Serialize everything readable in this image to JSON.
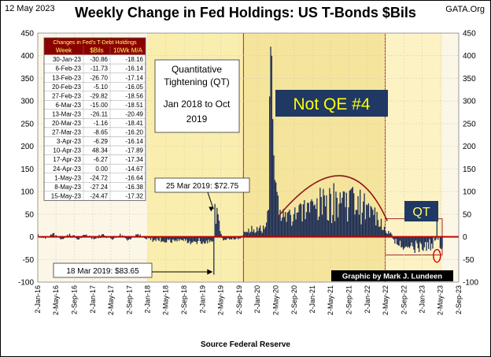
{
  "header": {
    "date": "12 May 2023",
    "title": "Weekly Change in Fed Holdings:  US T-Bonds $Bils",
    "site": "GATA.Org"
  },
  "footer": {
    "source": "Source  Federal Reserve"
  },
  "colors": {
    "plot_bg": "#fbf6e6",
    "qt1_region": "#faeeae",
    "qe_region": "#f5e49c",
    "qt2_region": "#fdf2c4",
    "bars": "#1f2f55",
    "zero_line": "#c00000",
    "region_border": "#a52a2a",
    "arc": "#8b1a1a",
    "qe_box": "#1f3864",
    "qe_text": "#ffff00",
    "qt_box": "#1f3864",
    "qt_text": "#ffff66",
    "table_header": "#8b0000",
    "table_header_text": "#ffff66"
  },
  "annotations": {
    "qt_box_lines": [
      "Quantitative",
      "Tightening (QT)",
      "Jan 2018 to Oct",
      "2019"
    ],
    "not_qe": "Not QE #4",
    "qt2": "QT",
    "mar25": "25 Mar 2019:  $72.75",
    "mar18": "18 Mar 2019:  $83.65",
    "credit": "Graphic by Mark J. Lundeen"
  },
  "table": {
    "title": "Changes in Fed's T-Debt Holdings",
    "columns": [
      "Week",
      "$Bils",
      "10Wk M/A"
    ],
    "rows": [
      [
        "30-Jan-23",
        "-30.86",
        "-18.16"
      ],
      [
        "6-Feb-23",
        "-11.73",
        "-16.14"
      ],
      [
        "13-Feb-23",
        "-26.70",
        "-17.14"
      ],
      [
        "20-Feb-23",
        "-5.10",
        "-16.05"
      ],
      [
        "27-Feb-23",
        "-29.82",
        "-18.56"
      ],
      [
        "6-Mar-23",
        "-15.00",
        "-18.51"
      ],
      [
        "13-Mar-23",
        "-26.11",
        "-20.49"
      ],
      [
        "20-Mar-23",
        "-1.16",
        "-18.41"
      ],
      [
        "27-Mar-23",
        "-8.65",
        "-16.20"
      ],
      [
        "3-Apr-23",
        "-6.29",
        "-16.14"
      ],
      [
        "10-Apr-23",
        "48.34",
        "-17.89"
      ],
      [
        "17-Apr-23",
        "-6.27",
        "-17.34"
      ],
      [
        "24-Apr-23",
        "0.00",
        "-14.67"
      ],
      [
        "1-May-23",
        "-24.72",
        "-16.64"
      ],
      [
        "8-May-23",
        "-27.24",
        "-16.38"
      ],
      [
        "15-May-23",
        "-24.47",
        "-17.32"
      ]
    ]
  },
  "chart_data": {
    "type": "bar",
    "title": "Weekly Change in Fed Holdings:  US T-Bonds $Bils",
    "xlabel": "",
    "ylabel": "",
    "ylim": [
      -100,
      450
    ],
    "yticks": [
      -100,
      -50,
      0,
      50,
      100,
      150,
      200,
      250,
      300,
      350,
      400,
      450
    ],
    "xlim": [
      "2016-01-02",
      "2023-09-02"
    ],
    "xtick_labels": [
      "2-Jan-16",
      "2-May-16",
      "2-Sep-16",
      "2-Jan-17",
      "2-May-17",
      "2-Sep-17",
      "2-Jan-18",
      "2-May-18",
      "2-Sep-18",
      "2-Jan-19",
      "2-May-19",
      "2-Sep-19",
      "2-Jan-20",
      "2-May-20",
      "2-Sep-20",
      "2-Jan-21",
      "2-May-21",
      "2-Sep-21",
      "2-Jan-22",
      "2-May-22",
      "2-Sep-22",
      "2-Jan-23",
      "2-May-23",
      "2-Sep-23"
    ],
    "regions": [
      {
        "from": "2018-01-01",
        "to": "2019-10-01"
      },
      {
        "from": "2019-10-01",
        "to": "2022-05-01"
      },
      {
        "from": "2022-05-01",
        "to": "2023-05-15"
      }
    ],
    "series": [
      {
        "weekly": [
          [
            "2016-01-04",
            6
          ],
          [
            "2016-02-22",
            -4
          ],
          [
            "2016-04-11",
            8
          ],
          [
            "2016-06-06",
            -5
          ],
          [
            "2016-08-01",
            7
          ],
          [
            "2016-09-26",
            -6
          ],
          [
            "2016-11-21",
            5
          ],
          [
            "2017-01-16",
            -4
          ],
          [
            "2017-03-13",
            6
          ],
          [
            "2017-05-08",
            -5
          ],
          [
            "2017-07-03",
            7
          ],
          [
            "2017-08-28",
            -6
          ],
          [
            "2017-10-23",
            5
          ],
          [
            "2017-12-18",
            -4
          ],
          [
            "2018-02-12",
            -8
          ],
          [
            "2018-04-09",
            -10
          ],
          [
            "2018-06-04",
            -12
          ],
          [
            "2018-07-30",
            -9
          ],
          [
            "2018-09-24",
            -14
          ],
          [
            "2018-11-19",
            -11
          ],
          [
            "2019-01-14",
            -15
          ],
          [
            "2019-03-11",
            -10
          ],
          [
            "2019-03-18",
            -83.65
          ],
          [
            "2019-03-25",
            72.75
          ],
          [
            "2019-05-20",
            -8
          ],
          [
            "2019-07-15",
            -6
          ],
          [
            "2019-09-09",
            -4
          ],
          [
            "2019-11-04",
            18
          ],
          [
            "2019-12-30",
            22
          ],
          [
            "2020-02-10",
            25
          ],
          [
            "2020-03-16",
            60
          ],
          [
            "2020-03-23",
            310
          ],
          [
            "2020-03-30",
            420
          ],
          [
            "2020-04-06",
            400
          ],
          [
            "2020-04-13",
            260
          ],
          [
            "2020-04-20",
            180
          ],
          [
            "2020-05-04",
            120
          ],
          [
            "2020-06-01",
            60
          ],
          [
            "2020-07-06",
            55
          ],
          [
            "2020-08-03",
            60
          ],
          [
            "2020-09-07",
            65
          ],
          [
            "2020-10-05",
            70
          ],
          [
            "2020-11-02",
            72
          ],
          [
            "2020-12-07",
            75
          ],
          [
            "2021-01-04",
            78
          ],
          [
            "2021-02-01",
            85
          ],
          [
            "2021-03-01",
            88
          ],
          [
            "2021-04-05",
            92
          ],
          [
            "2021-05-03",
            95
          ],
          [
            "2021-06-07",
            100
          ],
          [
            "2021-07-05",
            98
          ],
          [
            "2021-08-02",
            100
          ],
          [
            "2021-09-06",
            102
          ],
          [
            "2021-10-04",
            96
          ],
          [
            "2021-11-01",
            90
          ],
          [
            "2021-12-06",
            78
          ],
          [
            "2022-01-03",
            70
          ],
          [
            "2022-02-07",
            60
          ],
          [
            "2022-03-07",
            55
          ],
          [
            "2022-04-04",
            40
          ],
          [
            "2022-06-06",
            10
          ],
          [
            "2022-07-04",
            -15
          ],
          [
            "2022-08-01",
            -20
          ],
          [
            "2022-09-05",
            -25
          ],
          [
            "2022-10-03",
            -22
          ],
          [
            "2022-11-07",
            -28
          ],
          [
            "2022-12-05",
            -25
          ],
          [
            "2023-01-30",
            -30.86
          ],
          [
            "2023-02-06",
            -11.73
          ],
          [
            "2023-02-13",
            -26.7
          ],
          [
            "2023-02-20",
            -5.1
          ],
          [
            "2023-02-27",
            -29.82
          ],
          [
            "2023-03-06",
            -15
          ],
          [
            "2023-03-13",
            -26.11
          ],
          [
            "2023-03-20",
            -1.16
          ],
          [
            "2023-03-27",
            -8.65
          ],
          [
            "2023-04-03",
            -6.29
          ],
          [
            "2023-04-10",
            48.34
          ],
          [
            "2023-04-17",
            -6.27
          ],
          [
            "2023-04-24",
            0
          ],
          [
            "2023-05-01",
            -24.72
          ],
          [
            "2023-05-08",
            -27.24
          ],
          [
            "2023-05-15",
            -24.47
          ]
        ]
      }
    ]
  }
}
